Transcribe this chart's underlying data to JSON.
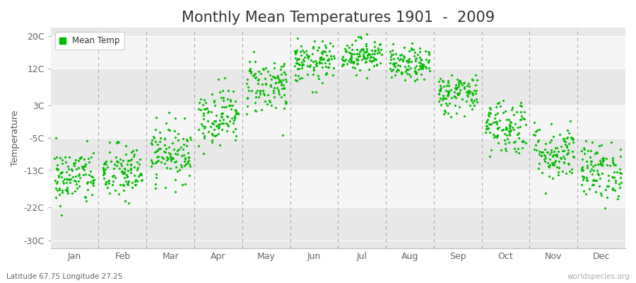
{
  "title": "Monthly Mean Temperatures 1901  -  2009",
  "ylabel": "Temperature",
  "xlabel_labels": [
    "Jan",
    "Feb",
    "Mar",
    "Apr",
    "May",
    "Jun",
    "Jul",
    "Aug",
    "Sep",
    "Oct",
    "Nov",
    "Dec"
  ],
  "yticks": [
    -30,
    -22,
    -13,
    -5,
    3,
    12,
    20
  ],
  "ytick_labels": [
    "-30C",
    "-22C",
    "-13C",
    "-5C",
    "3C",
    "12C",
    "20C"
  ],
  "ylim": [
    -32,
    22
  ],
  "background_color": "#ffffff",
  "dot_color": "#00bb00",
  "title_fontsize": 15,
  "axis_fontsize": 9,
  "legend_label": "Mean Temp",
  "subtitle": "Latitude 67.75 Longitude 27.25",
  "watermark": "worldspecies.org",
  "n_years": 109,
  "monthly_means": [
    -14.5,
    -13.5,
    -8.5,
    0.5,
    8.0,
    13.5,
    15.5,
    13.0,
    6.0,
    -2.0,
    -8.5,
    -13.0
  ],
  "monthly_stds": [
    3.5,
    3.5,
    3.5,
    3.5,
    3.5,
    2.5,
    2.0,
    2.0,
    2.5,
    3.5,
    3.5,
    3.5
  ],
  "band_ranges": [
    [
      -32,
      -22
    ],
    [
      -22,
      -13
    ],
    [
      -13,
      -5
    ],
    [
      -5,
      3
    ],
    [
      3,
      12
    ],
    [
      12,
      20
    ],
    [
      20,
      22
    ]
  ],
  "band_colors": [
    "#e8e8e8",
    "#f5f5f5",
    "#e8e8e8",
    "#f5f5f5",
    "#e8e8e8",
    "#f5f5f5",
    "#e8e8e8"
  ]
}
